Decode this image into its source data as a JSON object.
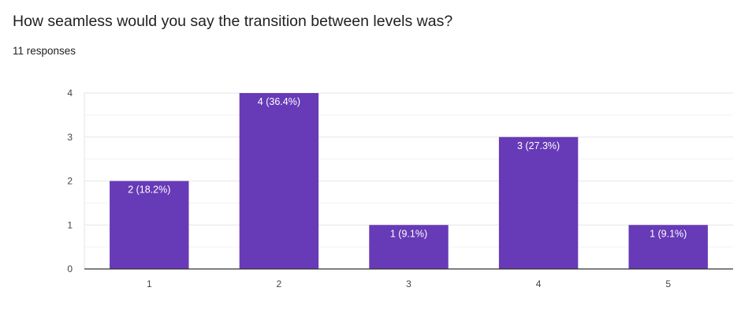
{
  "question": {
    "title": "How seamless would you say the transition between levels was?",
    "responses": "11 responses"
  },
  "chart_data": {
    "type": "bar",
    "categories": [
      "1",
      "2",
      "3",
      "4",
      "5"
    ],
    "values": [
      2,
      4,
      1,
      3,
      1
    ],
    "data_labels": [
      "2 (18.2%)",
      "4 (36.4%)",
      "1 (9.1%)",
      "3 (27.3%)",
      "1 (9.1%)"
    ],
    "yticks": [
      "0",
      "1",
      "2",
      "3",
      "4"
    ],
    "ylim": [
      0,
      4
    ],
    "grid": true,
    "bar_color": "#673ab7",
    "title": "",
    "xlabel": "",
    "ylabel": ""
  }
}
